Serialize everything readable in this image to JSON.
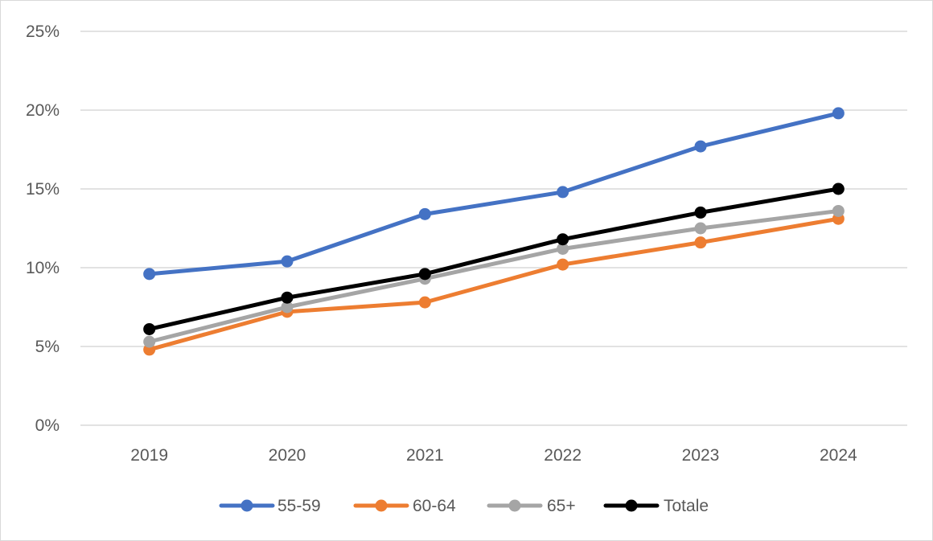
{
  "chart_data": {
    "type": "line",
    "title": "",
    "xlabel": "",
    "ylabel": "",
    "categories": [
      "2019",
      "2020",
      "2021",
      "2022",
      "2023",
      "2024"
    ],
    "y_ticks": [
      "0%",
      "5%",
      "10%",
      "15%",
      "20%",
      "25%"
    ],
    "ylim": [
      0,
      25
    ],
    "y_unit": "%",
    "grid": "horizontal",
    "legend_position": "bottom",
    "series": [
      {
        "name": "55-59",
        "color": "#4472c4",
        "values": [
          9.6,
          10.4,
          13.4,
          14.8,
          17.7,
          19.8
        ]
      },
      {
        "name": "60-64",
        "color": "#ed7d31",
        "values": [
          4.8,
          7.2,
          7.8,
          10.2,
          11.6,
          13.1
        ]
      },
      {
        "name": "65+",
        "color": "#a5a5a5",
        "values": [
          5.3,
          7.5,
          9.3,
          11.2,
          12.5,
          13.6
        ]
      },
      {
        "name": "Totale",
        "color": "#000000",
        "values": [
          6.1,
          8.1,
          9.6,
          11.8,
          13.5,
          15.0
        ]
      }
    ]
  }
}
